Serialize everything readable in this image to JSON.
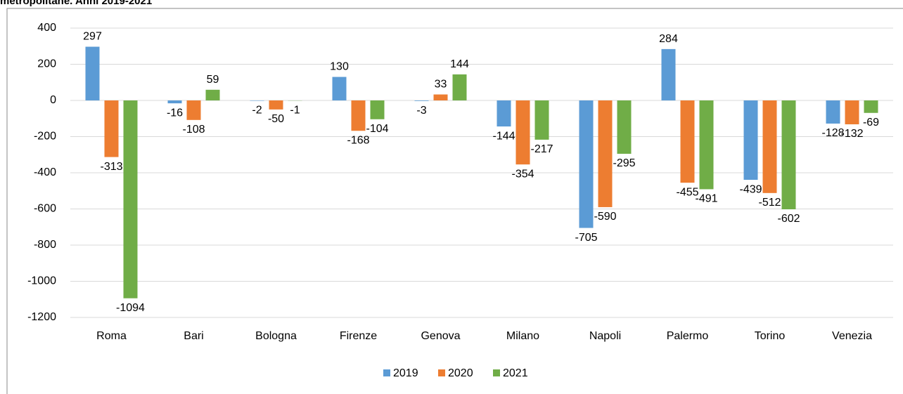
{
  "chart_data": {
    "type": "bar",
    "title": "metropolitane. Anni 2019-2021",
    "categories": [
      "Roma",
      "Bari",
      "Bologna",
      "Firenze",
      "Genova",
      "Milano",
      "Napoli",
      "Palermo",
      "Torino",
      "Venezia"
    ],
    "series": [
      {
        "name": "2019",
        "color": "#5b9bd5",
        "values": [
          297,
          -16,
          -2,
          130,
          -3,
          -144,
          -705,
          284,
          -439,
          -128
        ]
      },
      {
        "name": "2020",
        "color": "#ed7d31",
        "values": [
          -313,
          -108,
          -50,
          -168,
          33,
          -354,
          -590,
          -455,
          -512,
          -132
        ]
      },
      {
        "name": "2021",
        "color": "#70ad47",
        "values": [
          -1094,
          59,
          -1,
          -104,
          144,
          -217,
          -295,
          -491,
          -602,
          -69
        ]
      }
    ],
    "ylim": [
      -1200,
      400
    ],
    "yticks": [
      -1200,
      -1000,
      -800,
      -600,
      -400,
      -200,
      0,
      200,
      400
    ],
    "grid": true,
    "legend": "bottom"
  }
}
